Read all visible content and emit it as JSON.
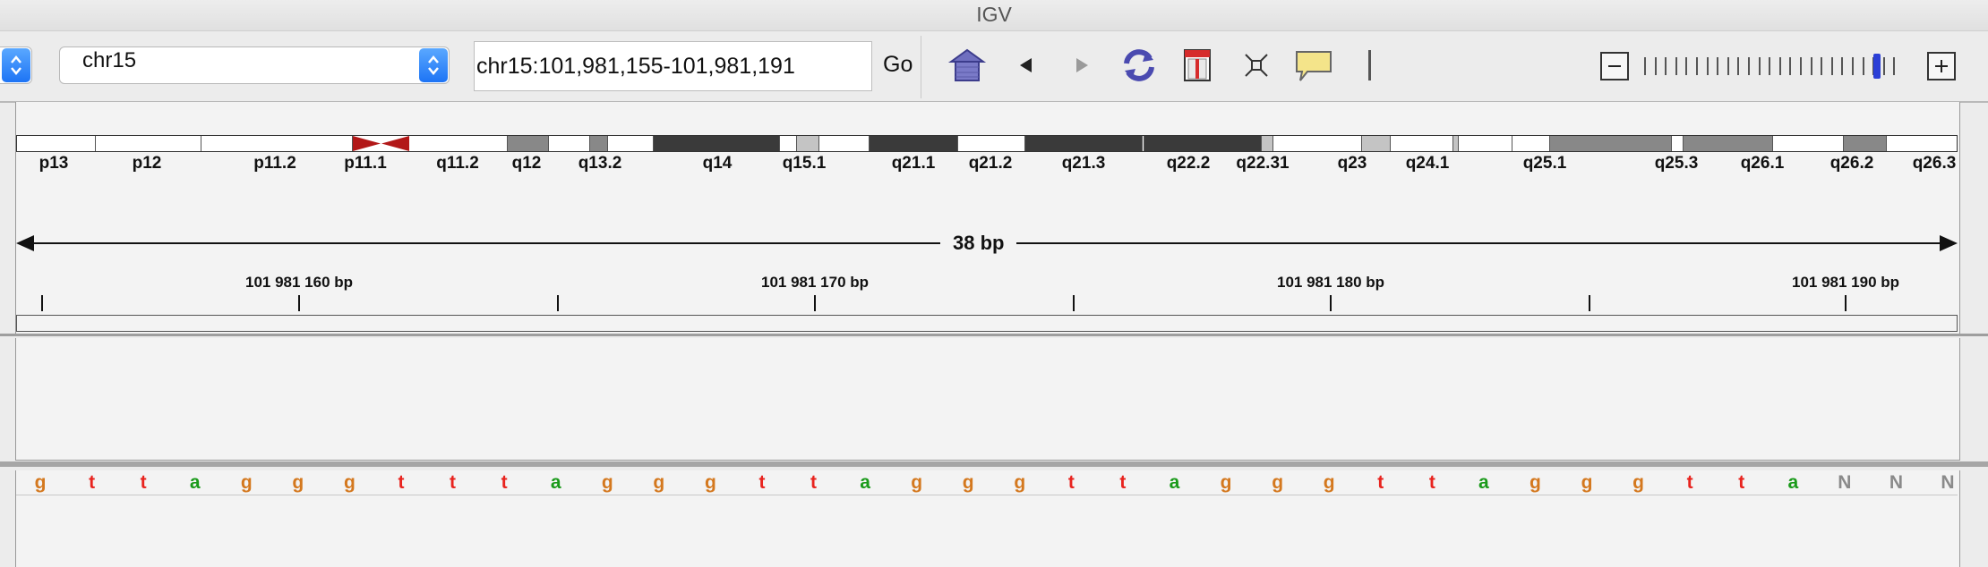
{
  "window": {
    "title": "IGV"
  },
  "toolbar": {
    "genome_value": "",
    "chromosome_value": "chr15",
    "locus_value": "chr15:101,981,155-101,981,191",
    "go_label": "Go",
    "zoom_level": 0.92
  },
  "ideogram": {
    "bands": [
      {
        "label": "p13",
        "stain": "gneg"
      },
      {
        "label": "p12",
        "stain": "gneg"
      },
      {
        "label": "p11.2",
        "stain": "gneg"
      },
      {
        "label": "p11.1",
        "stain": "acen"
      },
      {
        "label": "q11.2",
        "stain": "gneg"
      },
      {
        "label": "q12",
        "stain": "gpos50"
      },
      {
        "label": "q13.2",
        "stain": "gpos50"
      },
      {
        "label": "q14",
        "stain": "gpos100"
      },
      {
        "label": "q15.1",
        "stain": "gneg"
      },
      {
        "label": "q21.1",
        "stain": "gpos100"
      },
      {
        "label": "q21.2",
        "stain": "gneg"
      },
      {
        "label": "q21.3",
        "stain": "gpos100"
      },
      {
        "label": "q22.2",
        "stain": "gpos25"
      },
      {
        "label": "q22.31",
        "stain": "gneg"
      },
      {
        "label": "q23",
        "stain": "gpos25"
      },
      {
        "label": "q24.1",
        "stain": "gneg"
      },
      {
        "label": "q25.1",
        "stain": "gpos50"
      },
      {
        "label": "q25.3",
        "stain": "gpos50"
      },
      {
        "label": "q26.1",
        "stain": "gneg"
      },
      {
        "label": "q26.2",
        "stain": "gpos50"
      },
      {
        "label": "q26.3",
        "stain": "gneg"
      }
    ]
  },
  "ruler": {
    "span_label": "38 bp",
    "tick_labels": [
      "101 981 160 bp",
      "101 981 170 bp",
      "101 981 180 bp",
      "101 981 190 bp"
    ]
  },
  "sequence": {
    "bases": [
      "g",
      "t",
      "t",
      "a",
      "g",
      "g",
      "g",
      "t",
      "t",
      "t",
      "a",
      "g",
      "g",
      "g",
      "t",
      "t",
      "a",
      "g",
      "g",
      "g",
      "t",
      "t",
      "a",
      "g",
      "g",
      "g",
      "t",
      "t",
      "a",
      "g",
      "g",
      "g",
      "t",
      "t",
      "a",
      "N",
      "N",
      "N"
    ],
    "colors": {
      "a": "#1a9a1a",
      "t": "#e8231e",
      "g": "#d4781e",
      "c": "#1f3cd8",
      "N": "#8a8a8a"
    }
  }
}
